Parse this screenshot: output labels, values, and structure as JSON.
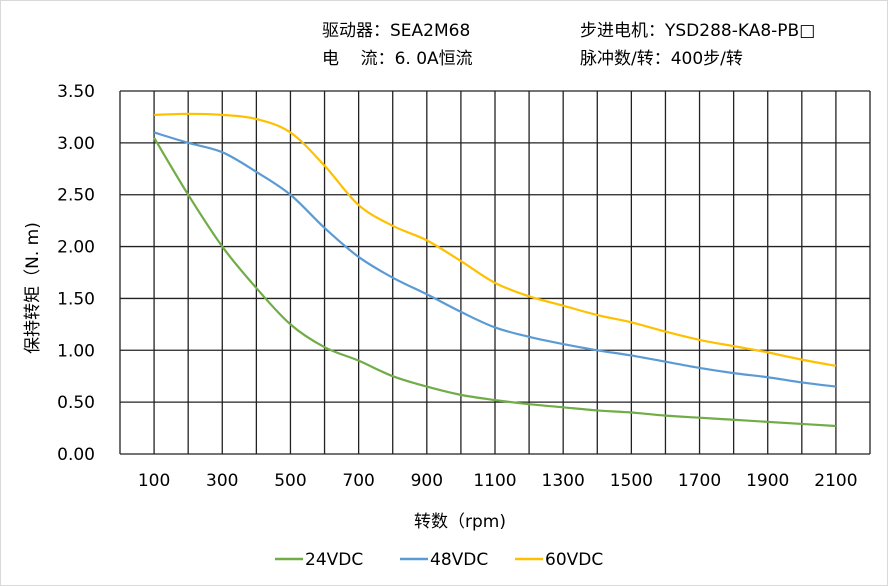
{
  "header": {
    "driver": "驱动器：SEA2M68",
    "current": "电    流：6. 0A恒流",
    "motor": "步进电机：YSD288-KA8-PB□",
    "pulses": "脉冲数/转：400步/转"
  },
  "chart_data": {
    "type": "line",
    "title": "",
    "xlabel": "转数（rpm)",
    "ylabel": "保持转矩（N. m)",
    "xlim": [
      0,
      2200
    ],
    "ylim": [
      0,
      3.5
    ],
    "grid": true,
    "legend_position": "bottom",
    "x_ticks": [
      "100",
      "300",
      "500",
      "700",
      "900",
      "1100",
      "1300",
      "1500",
      "1700",
      "1900",
      "2100"
    ],
    "y_ticks": [
      "0.00",
      "0.50",
      "1.00",
      "1.50",
      "2.00",
      "2.50",
      "3.00",
      "3.50"
    ],
    "x": [
      100,
      200,
      300,
      400,
      500,
      600,
      700,
      800,
      900,
      1000,
      1100,
      1200,
      1300,
      1400,
      1500,
      1600,
      1700,
      1800,
      1900,
      2000,
      2100
    ],
    "series": [
      {
        "name": "24VDC",
        "color": "#70ad47",
        "values": [
          3.05,
          2.5,
          2.0,
          1.6,
          1.25,
          1.03,
          0.9,
          0.75,
          0.65,
          0.57,
          0.52,
          0.48,
          0.45,
          0.42,
          0.4,
          0.37,
          0.35,
          0.33,
          0.31,
          0.29,
          0.27
        ]
      },
      {
        "name": "48VDC",
        "color": "#5b9bd5",
        "values": [
          3.1,
          3.0,
          2.91,
          2.72,
          2.5,
          2.18,
          1.9,
          1.7,
          1.54,
          1.37,
          1.22,
          1.13,
          1.06,
          1.0,
          0.95,
          0.89,
          0.83,
          0.78,
          0.74,
          0.69,
          0.65
        ]
      },
      {
        "name": "60VDC",
        "color": "#ffc000",
        "values": [
          3.27,
          3.28,
          3.27,
          3.23,
          3.1,
          2.78,
          2.4,
          2.2,
          2.06,
          1.86,
          1.65,
          1.52,
          1.43,
          1.34,
          1.27,
          1.18,
          1.1,
          1.04,
          0.98,
          0.91,
          0.85
        ]
      }
    ]
  }
}
